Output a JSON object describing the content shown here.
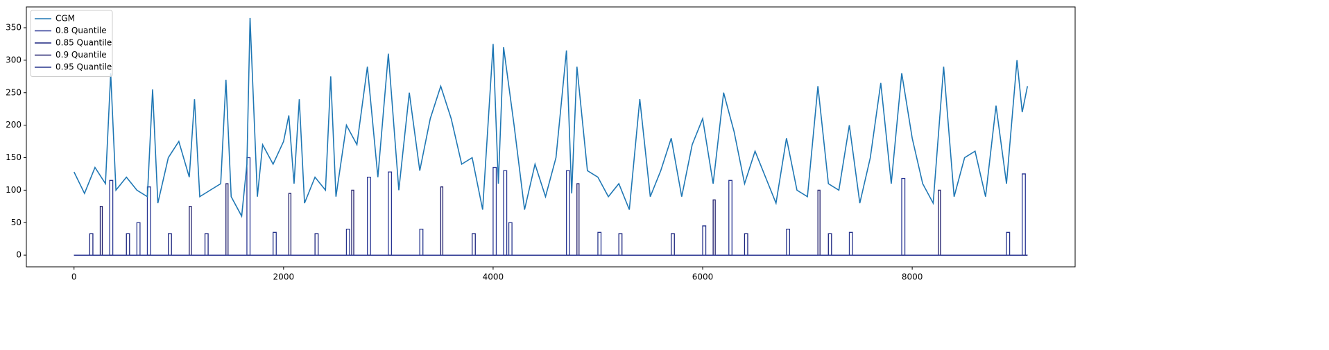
{
  "chart_data": {
    "type": "line",
    "xlim": [
      -455,
      9555
    ],
    "ylim": [
      -18,
      382
    ],
    "xticks": [
      0,
      2000,
      4000,
      6000,
      8000
    ],
    "yticks": [
      0,
      50,
      100,
      150,
      200,
      250,
      300,
      350
    ],
    "grid": false,
    "legend": "upper left",
    "series": [
      {
        "name": "CGM",
        "color": "#1f77b4",
        "x": [
          0,
          100,
          200,
          300,
          350,
          400,
          500,
          600,
          700,
          750,
          800,
          900,
          1000,
          1100,
          1150,
          1200,
          1300,
          1400,
          1450,
          1500,
          1600,
          1650,
          1680,
          1750,
          1800,
          1900,
          2000,
          2050,
          2100,
          2150,
          2200,
          2300,
          2400,
          2450,
          2500,
          2600,
          2700,
          2800,
          2900,
          3000,
          3100,
          3200,
          3300,
          3400,
          3500,
          3600,
          3700,
          3800,
          3900,
          4000,
          4050,
          4100,
          4200,
          4300,
          4400,
          4500,
          4600,
          4700,
          4750,
          4800,
          4900,
          5000,
          5100,
          5200,
          5300,
          5400,
          5500,
          5600,
          5700,
          5800,
          5900,
          6000,
          6100,
          6200,
          6300,
          6400,
          6500,
          6600,
          6700,
          6800,
          6900,
          7000,
          7100,
          7200,
          7300,
          7400,
          7500,
          7600,
          7700,
          7800,
          7900,
          8000,
          8100,
          8200,
          8300,
          8400,
          8500,
          8600,
          8700,
          8800,
          8900,
          9000,
          9050,
          9100
        ],
        "values": [
          128,
          95,
          135,
          110,
          280,
          100,
          120,
          100,
          90,
          255,
          80,
          150,
          175,
          120,
          240,
          90,
          100,
          110,
          270,
          90,
          60,
          140,
          365,
          90,
          170,
          140,
          175,
          215,
          110,
          240,
          80,
          120,
          100,
          275,
          90,
          200,
          170,
          290,
          120,
          310,
          100,
          250,
          130,
          210,
          260,
          210,
          140,
          150,
          70,
          325,
          110,
          320,
          200,
          70,
          140,
          90,
          150,
          315,
          95,
          290,
          130,
          120,
          90,
          110,
          70,
          240,
          90,
          130,
          180,
          90,
          170,
          210,
          110,
          250,
          190,
          110,
          160,
          120,
          80,
          180,
          100,
          90,
          260,
          110,
          100,
          200,
          80,
          150,
          265,
          110,
          280,
          180,
          110,
          80,
          290,
          90,
          150,
          160,
          90,
          230,
          110,
          300,
          220,
          260
        ]
      },
      {
        "name": "0.8 Quantile",
        "color": "#283593",
        "x": [
          0,
          340,
          340,
          370,
          370,
          700,
          700,
          730,
          730,
          1650,
          1650,
          1680,
          1680,
          2800,
          2800,
          2830,
          2830,
          3000,
          3000,
          3030,
          3030,
          4000,
          4000,
          4030,
          4030,
          4100,
          4100,
          4130,
          4130,
          4700,
          4700,
          4730,
          4730,
          6250,
          6250,
          6280,
          6280,
          7900,
          7900,
          7930,
          7930,
          9050,
          9050,
          9080,
          9080
        ],
        "values": [
          0,
          0,
          115,
          115,
          0,
          0,
          105,
          105,
          0,
          0,
          150,
          150,
          0,
          0,
          120,
          120,
          0,
          0,
          128,
          128,
          0,
          0,
          135,
          135,
          0,
          0,
          130,
          130,
          0,
          0,
          130,
          130,
          0,
          0,
          115,
          115,
          0,
          0,
          118,
          118,
          0,
          0,
          125,
          125,
          0
        ]
      },
      {
        "name": "0.85 Quantile",
        "color": "#1a237e",
        "x": [
          0,
          150,
          150,
          180,
          180,
          500,
          500,
          530,
          530,
          900,
          900,
          930,
          930,
          1250,
          1250,
          1280,
          1280,
          2300,
          2300,
          2330,
          2330,
          3800,
          3800,
          3830,
          3830,
          5200,
          5200,
          5230,
          5230,
          5700,
          5700,
          5730,
          5730,
          6400,
          6400,
          6430,
          6430,
          7200,
          7200,
          7230,
          7230,
          9100
        ],
        "values": [
          0,
          0,
          33,
          33,
          0,
          0,
          33,
          33,
          0,
          0,
          33,
          33,
          0,
          0,
          33,
          33,
          0,
          0,
          33,
          33,
          0,
          0,
          33,
          33,
          0,
          0,
          33,
          33,
          0,
          0,
          33,
          33,
          0,
          0,
          33,
          33,
          0,
          0,
          33,
          33,
          0,
          0
        ]
      },
      {
        "name": "0.9 Quantile",
        "color": "#1f1d6b",
        "x": [
          0,
          250,
          250,
          270,
          270,
          1100,
          1100,
          1120,
          1120,
          1450,
          1450,
          1470,
          1470,
          2050,
          2050,
          2070,
          2070,
          2650,
          2650,
          2670,
          2670,
          3500,
          3500,
          3520,
          3520,
          4800,
          4800,
          4820,
          4820,
          6100,
          6100,
          6120,
          6120,
          7100,
          7100,
          7120,
          7120,
          8250,
          8250,
          8270,
          8270,
          9100
        ],
        "values": [
          0,
          0,
          75,
          75,
          0,
          0,
          75,
          75,
          0,
          0,
          110,
          110,
          0,
          0,
          95,
          95,
          0,
          0,
          100,
          100,
          0,
          0,
          105,
          105,
          0,
          0,
          110,
          110,
          0,
          0,
          85,
          85,
          0,
          0,
          100,
          100,
          0,
          0,
          100,
          100,
          0,
          0
        ]
      },
      {
        "name": "0.95 Quantile",
        "color": "#26348c",
        "x": [
          0,
          600,
          600,
          630,
          630,
          1900,
          1900,
          1930,
          1930,
          2600,
          2600,
          2630,
          2630,
          3300,
          3300,
          3330,
          3330,
          4150,
          4150,
          4180,
          4180,
          5000,
          5000,
          5030,
          5030,
          6000,
          6000,
          6030,
          6030,
          6800,
          6800,
          6830,
          6830,
          7400,
          7400,
          7430,
          7430,
          8900,
          8900,
          8930,
          8930,
          9100
        ],
        "values": [
          0,
          0,
          50,
          50,
          0,
          0,
          35,
          35,
          0,
          0,
          40,
          40,
          0,
          0,
          40,
          40,
          0,
          0,
          50,
          50,
          0,
          0,
          35,
          35,
          0,
          0,
          45,
          45,
          0,
          0,
          40,
          40,
          0,
          0,
          35,
          35,
          0,
          0,
          35,
          35,
          0,
          0
        ]
      }
    ]
  }
}
